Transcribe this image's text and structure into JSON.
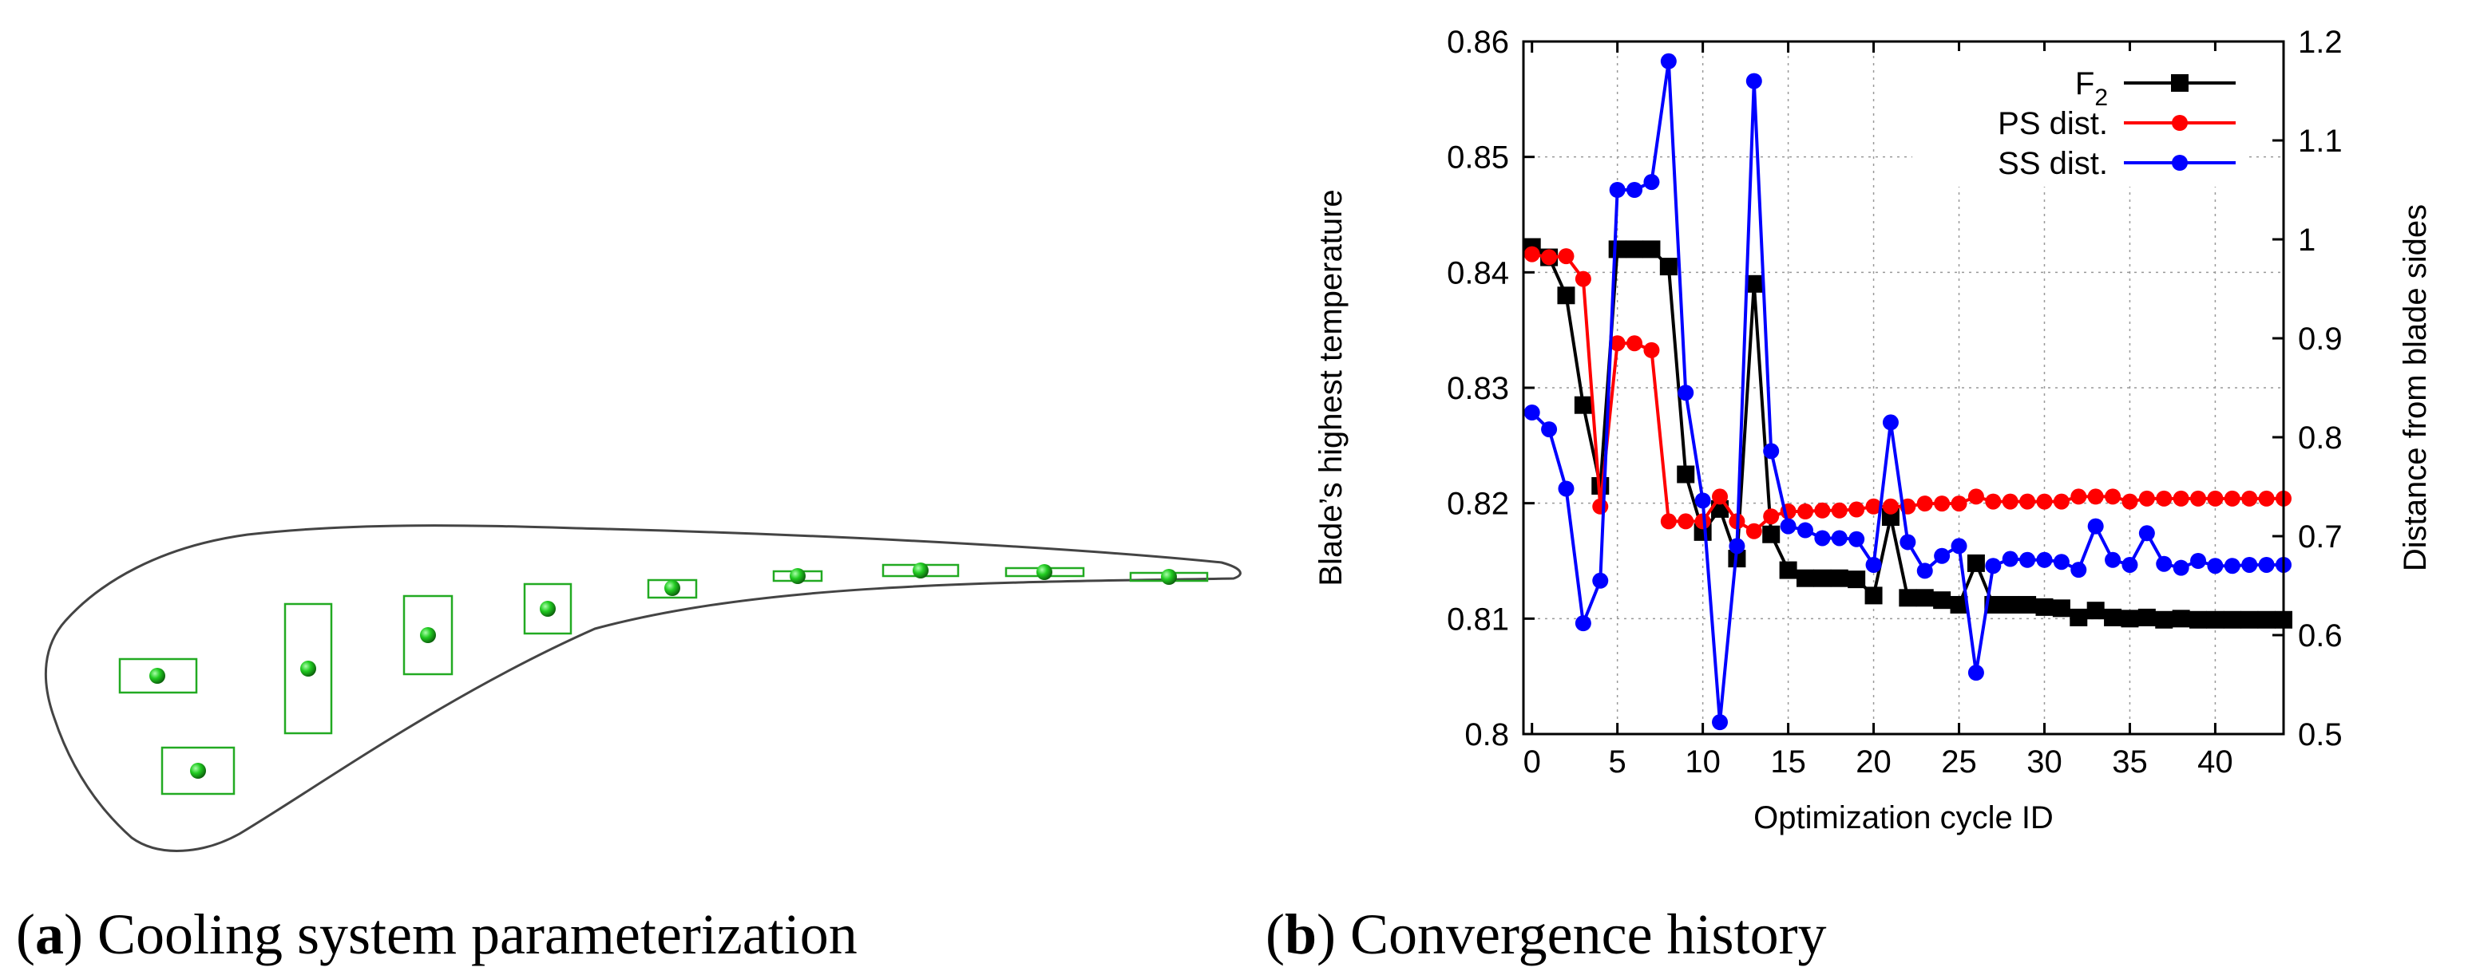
{
  "panel_a": {
    "caption_letter": "a",
    "caption_text": "Cooling system parameterization"
  },
  "panel_b": {
    "caption_letter": "b",
    "caption_text": "Convergence history"
  },
  "chart_data": {
    "type": "line",
    "title": "",
    "xlabel": "Optimization cycle ID",
    "ylabel": "Blade’s highest temperature",
    "y2label": "Distance from blade sides",
    "xlim": [
      -0.5,
      44
    ],
    "ylim": [
      0.8,
      0.86
    ],
    "y2lim": [
      0.5,
      1.2
    ],
    "xticks": [
      0,
      5,
      10,
      15,
      20,
      25,
      30,
      35,
      40
    ],
    "yticks": [
      0.8,
      0.81,
      0.82,
      0.83,
      0.84,
      0.85,
      0.86
    ],
    "y2ticks": [
      0.5,
      0.6,
      0.7,
      0.8,
      0.9,
      1,
      1.1,
      1.2
    ],
    "xtick_labels": [
      "0",
      "5",
      "10",
      "15",
      "20",
      "25",
      "30",
      "35",
      "40"
    ],
    "ytick_labels": [
      "0.8",
      "0.81",
      "0.82",
      "0.83",
      "0.84",
      "0.85",
      "0.86"
    ],
    "y2tick_labels": [
      "0.5",
      "0.6",
      "0.7",
      "0.8",
      "0.9",
      "1",
      "1.1",
      "1.2"
    ],
    "grid": true,
    "legend_position": "top-right",
    "x": [
      0,
      1,
      2,
      3,
      4,
      5,
      6,
      7,
      8,
      9,
      10,
      11,
      12,
      13,
      14,
      15,
      16,
      17,
      18,
      19,
      20,
      21,
      22,
      23,
      24,
      25,
      26,
      27,
      28,
      29,
      30,
      31,
      32,
      33,
      34,
      35,
      36,
      37,
      38,
      39,
      40,
      41,
      42,
      43,
      44
    ],
    "series": [
      {
        "name": "F2",
        "legend_main": "F",
        "legend_sub": "2",
        "axis": "left",
        "color": "#000000",
        "marker": "square",
        "values": [
          0.8422,
          0.8413,
          0.838,
          0.8285,
          0.8215,
          0.842,
          0.842,
          0.842,
          0.8405,
          0.8225,
          0.8175,
          0.8195,
          0.8152,
          0.839,
          0.8173,
          0.8142,
          0.8135,
          0.8135,
          0.8135,
          0.8134,
          0.812,
          0.8188,
          0.8118,
          0.8118,
          0.8116,
          0.8112,
          0.8148,
          0.8112,
          0.8112,
          0.8112,
          0.811,
          0.8109,
          0.8101,
          0.8107,
          0.8101,
          0.81,
          0.8101,
          0.8099,
          0.81,
          0.8099,
          0.8099,
          0.8099,
          0.8099,
          0.8099,
          0.8099
        ]
      },
      {
        "name": "PS dist.",
        "legend_main": "PS dist.",
        "legend_sub": "",
        "axis": "right",
        "color": "#ff0000",
        "marker": "circle",
        "values": [
          0.985,
          0.982,
          0.983,
          0.96,
          0.73,
          0.895,
          0.895,
          0.888,
          0.715,
          0.715,
          0.715,
          0.74,
          0.715,
          0.705,
          0.72,
          0.725,
          0.725,
          0.726,
          0.726,
          0.727,
          0.73,
          0.73,
          0.73,
          0.733,
          0.733,
          0.733,
          0.74,
          0.735,
          0.735,
          0.735,
          0.735,
          0.735,
          0.74,
          0.74,
          0.74,
          0.735,
          0.738,
          0.738,
          0.738,
          0.738,
          0.738,
          0.738,
          0.738,
          0.738,
          0.738
        ]
      },
      {
        "name": "SS dist.",
        "legend_main": "SS dist.",
        "legend_sub": "",
        "axis": "right",
        "color": "#0000ff",
        "marker": "circle",
        "values": [
          0.825,
          0.808,
          0.748,
          0.612,
          0.655,
          1.05,
          1.05,
          1.058,
          1.18,
          0.845,
          0.736,
          0.512,
          0.69,
          1.16,
          0.786,
          0.71,
          0.706,
          0.698,
          0.698,
          0.697,
          0.671,
          0.815,
          0.694,
          0.665,
          0.68,
          0.69,
          0.562,
          0.67,
          0.677,
          0.676,
          0.676,
          0.674,
          0.666,
          0.71,
          0.676,
          0.671,
          0.703,
          0.672,
          0.668,
          0.675,
          0.67,
          0.67,
          0.671,
          0.671,
          0.671
        ]
      }
    ]
  }
}
